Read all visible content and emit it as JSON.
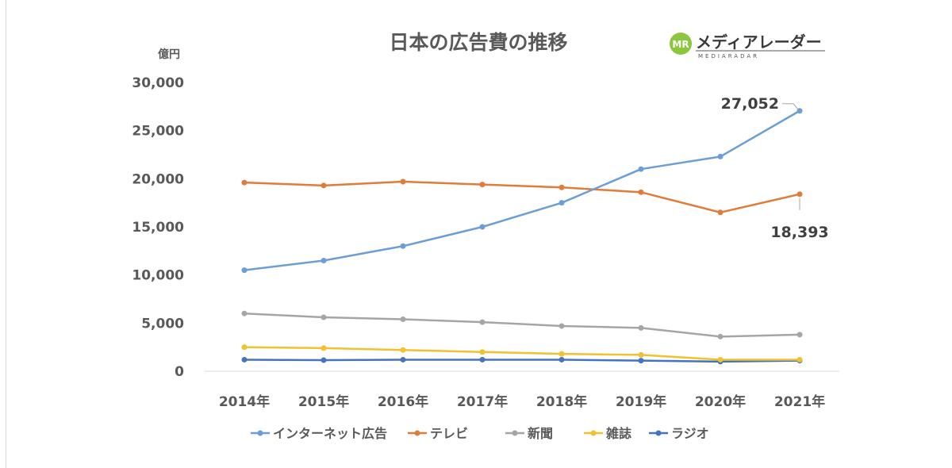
{
  "chart_data": {
    "type": "line",
    "title": "日本の広告費の推移",
    "ylabel": "億円",
    "xlabel": "",
    "ylim": [
      0,
      30000
    ],
    "yticks": [
      0,
      5000,
      10000,
      15000,
      20000,
      25000,
      30000
    ],
    "ytick_labels": [
      "0",
      "5,000",
      "10,000",
      "15,000",
      "20,000",
      "25,000",
      "30,000"
    ],
    "categories": [
      "2014年",
      "2015年",
      "2016年",
      "2017年",
      "2018年",
      "2019年",
      "2020年",
      "2021年"
    ],
    "series": [
      {
        "name": "インターネット広告",
        "color": "#6b9ed6",
        "values": [
          10500,
          11500,
          13000,
          15000,
          17500,
          21000,
          22300,
          27052
        ]
      },
      {
        "name": "テレビ",
        "color": "#e07b39",
        "values": [
          19600,
          19300,
          19700,
          19400,
          19100,
          18600,
          16500,
          18393
        ]
      },
      {
        "name": "新聞",
        "color": "#a5a5a5",
        "values": [
          6000,
          5600,
          5400,
          5100,
          4700,
          4500,
          3600,
          3800
        ]
      },
      {
        "name": "雑誌",
        "color": "#f2c12e",
        "values": [
          2500,
          2400,
          2200,
          2000,
          1800,
          1700,
          1200,
          1200
        ]
      },
      {
        "name": "ラジオ",
        "color": "#4472c4",
        "values": [
          1200,
          1150,
          1200,
          1200,
          1200,
          1100,
          1000,
          1100
        ]
      }
    ],
    "annotations": [
      {
        "series": "インターネット広告",
        "category": "2021年",
        "text": "27,052"
      },
      {
        "series": "テレビ",
        "category": "2021年",
        "text": "18,393"
      }
    ],
    "grid": false,
    "legend_position": "bottom"
  },
  "logo": {
    "name": "メディアレーダー",
    "sub": "MEDIARADAR",
    "mark": "MR"
  }
}
